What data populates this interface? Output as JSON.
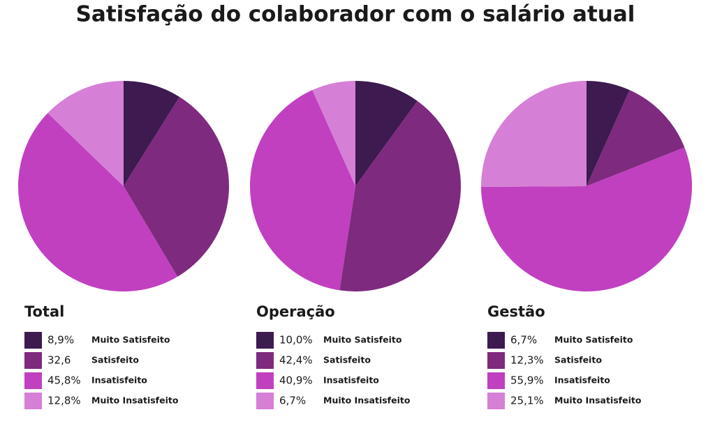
{
  "title": "Satisfação do colaborador com o salário atual",
  "chart_data": [
    {
      "type": "pie",
      "title": "Total",
      "categories": [
        "Muito Satisfeito",
        "Satisfeito",
        "Insatisfeito",
        "Muito Insatisfeito"
      ],
      "values": [
        8.9,
        32.6,
        45.8,
        12.8
      ],
      "value_labels": [
        "8,9%",
        "32,6",
        "45,8%",
        "12,8%"
      ],
      "colors": [
        "#3d1a4f",
        "#7e2a7e",
        "#c040c0",
        "#d67fd6"
      ]
    },
    {
      "type": "pie",
      "title": "Operação",
      "categories": [
        "Muito Satisfeito",
        "Satisfeito",
        "Insatisfeito",
        "Muito Insatisfeito"
      ],
      "values": [
        10.0,
        42.4,
        40.9,
        6.7
      ],
      "value_labels": [
        "10,0%",
        "42,4%",
        "40,9%",
        "6,7%"
      ],
      "colors": [
        "#3d1a4f",
        "#7e2a7e",
        "#c040c0",
        "#d67fd6"
      ]
    },
    {
      "type": "pie",
      "title": "Gestão",
      "categories": [
        "Muito Satisfeito",
        "Satisfeito",
        "Insatisfeito",
        "Muito Insatisfeito"
      ],
      "values": [
        6.7,
        12.3,
        55.9,
        25.1
      ],
      "value_labels": [
        "6,7%",
        "12,3%",
        "55,9%",
        "25,1%"
      ],
      "colors": [
        "#3d1a4f",
        "#7e2a7e",
        "#c040c0",
        "#d67fd6"
      ]
    }
  ]
}
